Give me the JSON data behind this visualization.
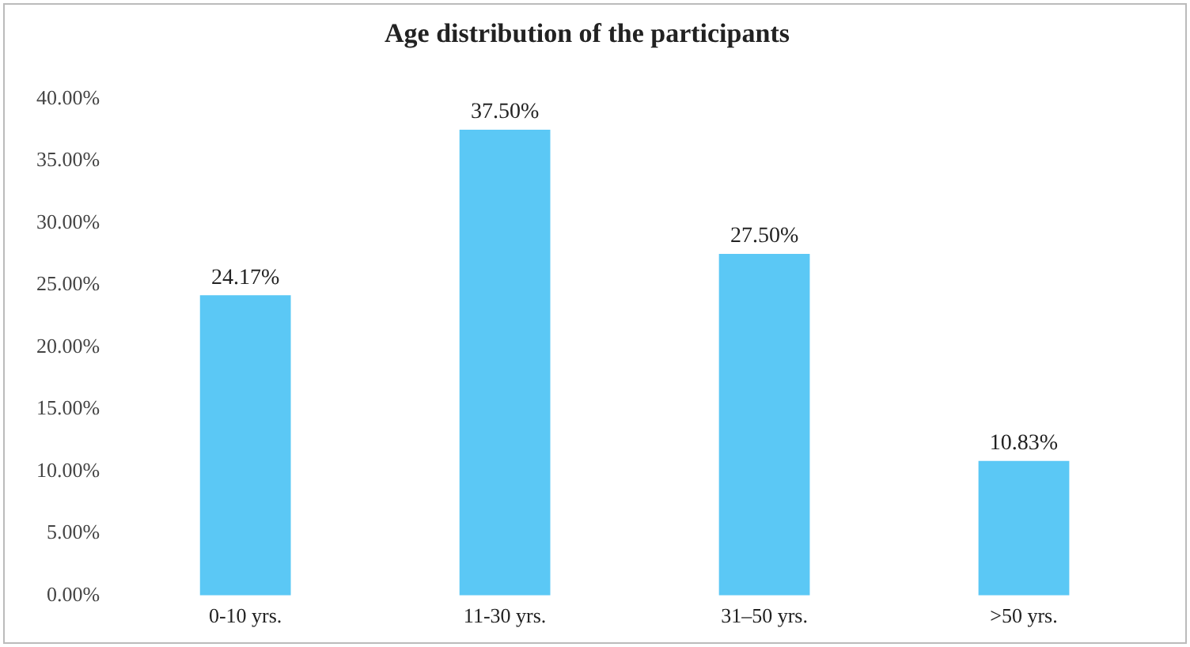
{
  "chart_data": {
    "type": "bar",
    "title": "Age distribution of the participants",
    "categories": [
      "0-10 yrs.",
      "11-30 yrs.",
      "31–50 yrs.",
      ">50 yrs."
    ],
    "values": [
      24.17,
      37.5,
      27.5,
      10.83
    ],
    "value_labels": [
      "24.17%",
      "37.50%",
      "27.50%",
      "10.83%"
    ],
    "color": "#5bc8f5",
    "ylim": [
      0,
      40
    ],
    "yticks": [
      {
        "value": 0,
        "label": "0.00%"
      },
      {
        "value": 5,
        "label": "5.00%"
      },
      {
        "value": 10,
        "label": "10.00%"
      },
      {
        "value": 15,
        "label": "15.00%"
      },
      {
        "value": 20,
        "label": "20.00%"
      },
      {
        "value": 25,
        "label": "25.00%"
      },
      {
        "value": 30,
        "label": "30.00%"
      },
      {
        "value": 35,
        "label": "35.00%"
      },
      {
        "value": 40,
        "label": "40.00%"
      }
    ],
    "grid": false,
    "legend": false
  }
}
